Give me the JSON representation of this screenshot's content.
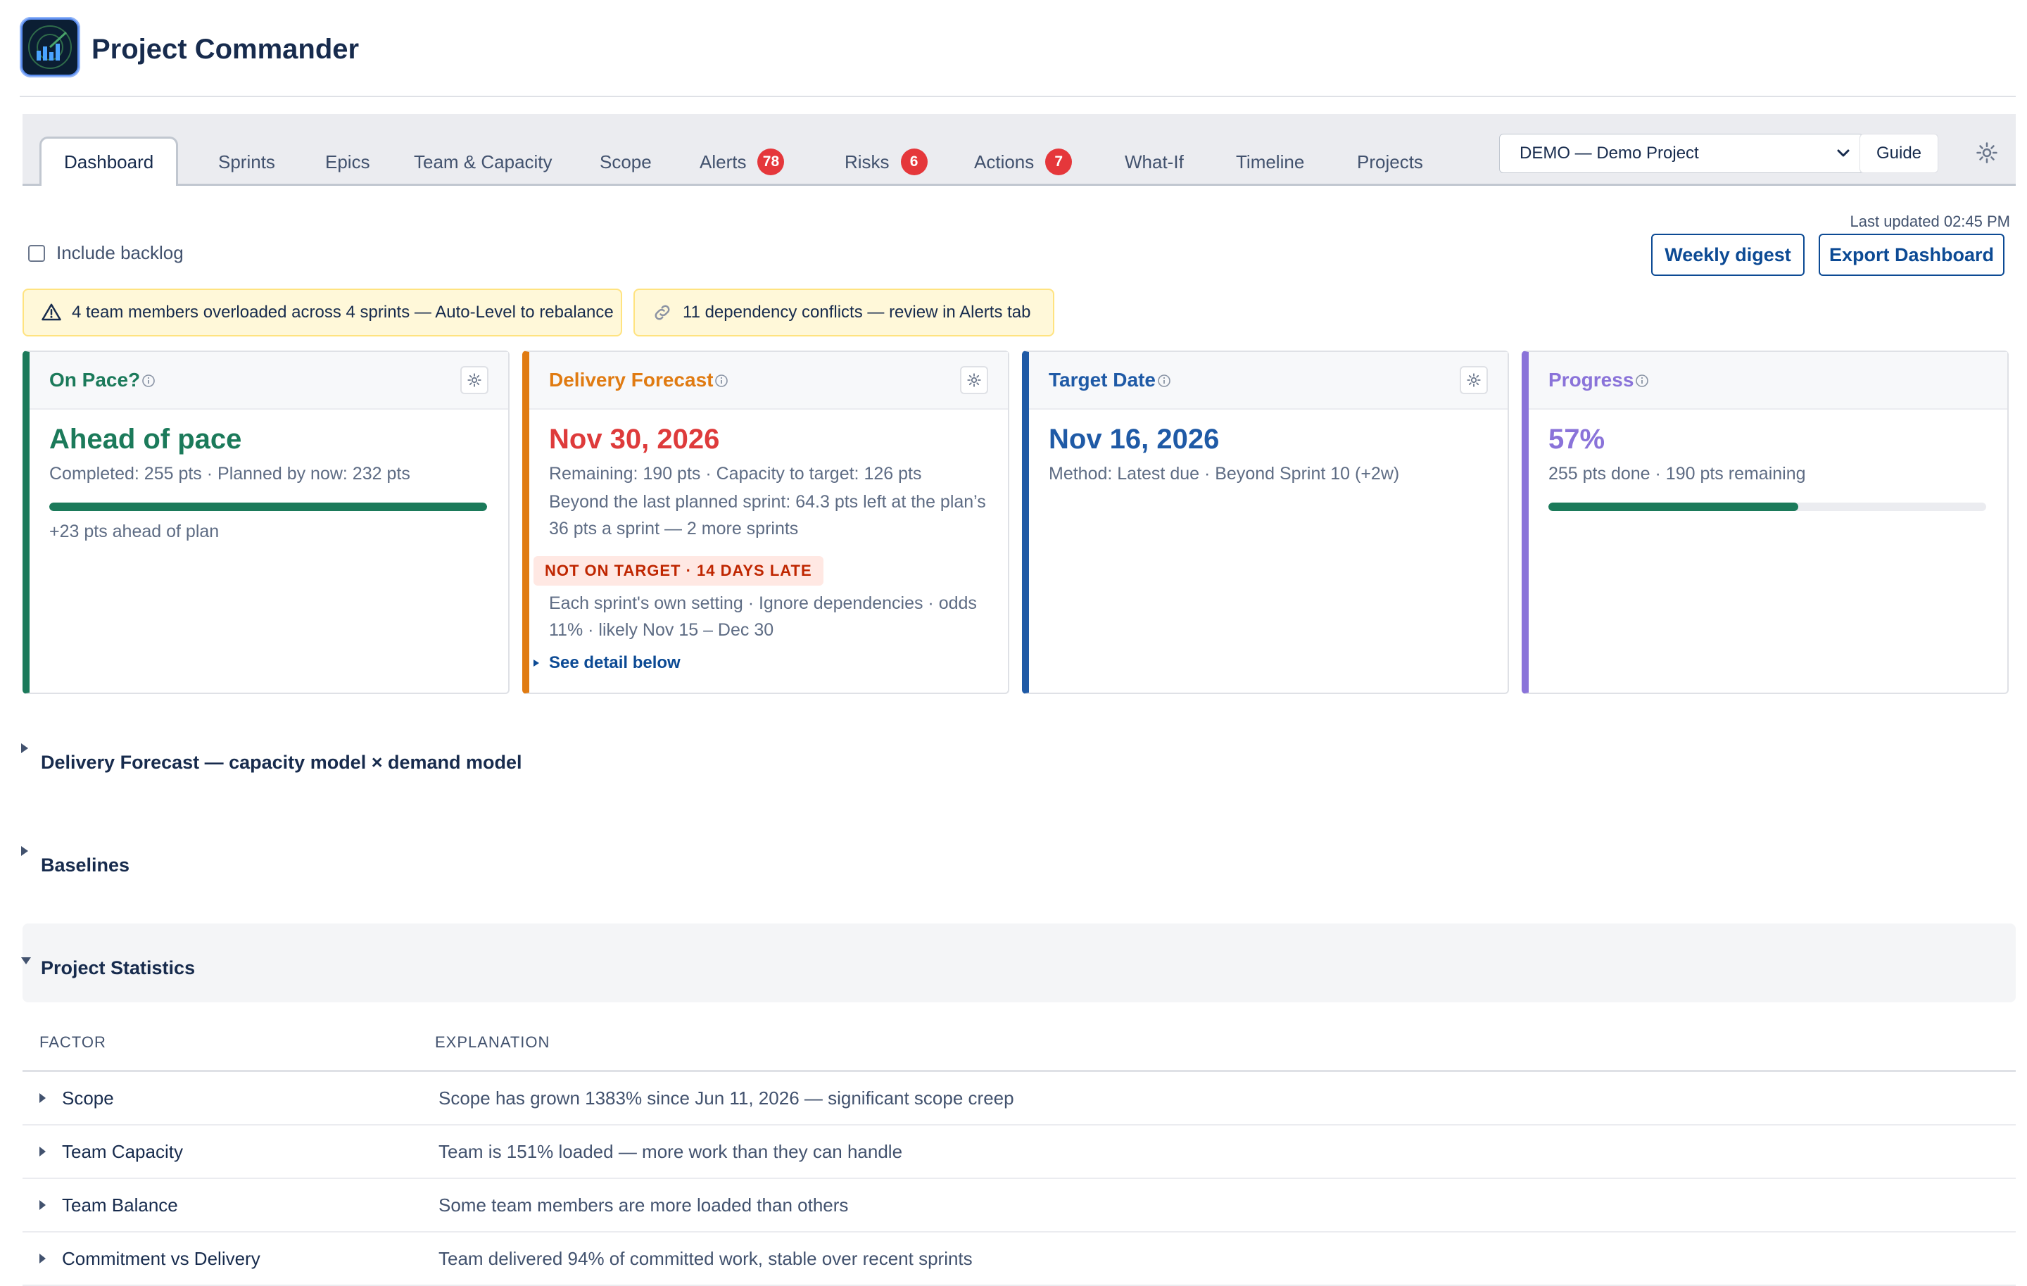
{
  "app": {
    "title": "Project Commander",
    "logo_icon": "radar-chart-icon"
  },
  "tabs": [
    {
      "label": "Dashboard",
      "active": true
    },
    {
      "label": "Sprints"
    },
    {
      "label": "Epics"
    },
    {
      "label": "Team & Capacity"
    },
    {
      "label": "Scope"
    },
    {
      "label": "Alerts",
      "badge": "78"
    },
    {
      "label": "Risks",
      "badge": "6"
    },
    {
      "label": "Actions",
      "badge": "7"
    },
    {
      "label": "What-If"
    },
    {
      "label": "Timeline"
    },
    {
      "label": "Projects"
    }
  ],
  "project_select": {
    "value": "DEMO — Demo Project"
  },
  "guide_label": "Guide",
  "last_updated": "Last updated 02:45 PM",
  "include_backlog_label": "Include backlog",
  "buttons": {
    "weekly_digest": "Weekly digest",
    "export": "Export Dashboard"
  },
  "banners": {
    "overload": "4 team members overloaded across 4 sprints — Auto-Level to rebalance",
    "dependency": "11 dependency conflicts — review in Alerts tab"
  },
  "cards": {
    "on_pace": {
      "title": "On Pace?",
      "headline": "Ahead of pace",
      "line1": "Completed: 255 pts · Planned by now: 232 pts",
      "progress": 1.0,
      "note": "+23 pts ahead of plan"
    },
    "forecast": {
      "title": "Delivery Forecast",
      "headline": "Nov 30, 2026",
      "line1": "Remaining: 190 pts · Capacity to target: 126 pts",
      "line2": "Beyond the last planned sprint: 64.3 pts left at the plan’s 36 pts a sprint — 2 more sprints",
      "pill": "NOT ON TARGET · 14 DAYS LATE",
      "line3": "Each sprint's own setting · Ignore dependencies · odds 11% · likely Nov 15 – Dec 30",
      "link": "See detail below"
    },
    "target": {
      "title": "Target Date",
      "headline": "Nov 16, 2026",
      "line1": "Method: Latest due · Beyond Sprint 10 (+2w)"
    },
    "progress": {
      "title": "Progress",
      "headline": "57%",
      "line1": "255 pts done · 190 pts remaining",
      "progress": 0.57
    }
  },
  "sections": {
    "forecast_model": "Delivery Forecast — capacity model × demand model",
    "baselines": "Baselines",
    "stats": "Project Statistics"
  },
  "table": {
    "headers": [
      "FACTOR",
      "EXPLANATION"
    ],
    "rows": [
      {
        "factor": "Scope",
        "explanation": "Scope has grown 1383% since Jun 11, 2026 — significant scope creep"
      },
      {
        "factor": "Team Capacity",
        "explanation": "Team is 151% loaded — more work than they can handle"
      },
      {
        "factor": "Team Balance",
        "explanation": "Some team members are more loaded than others"
      },
      {
        "factor": "Commitment vs Delivery",
        "explanation": "Team delivered 94% of committed work, stable over recent sprints"
      }
    ]
  },
  "colors": {
    "on_pace": "#1b7a5a",
    "forecast": "#e07b12",
    "forecast_value": "#de3b3b",
    "target": "#1f5aa6",
    "progress": "#8a73d9",
    "link": "#0c4a94"
  }
}
